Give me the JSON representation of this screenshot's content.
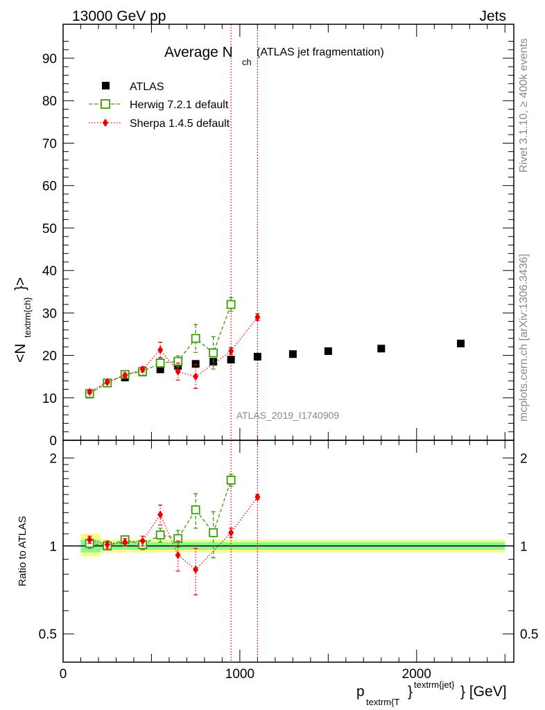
{
  "header": {
    "left": "13000 GeV pp",
    "right": "Jets"
  },
  "title": {
    "main": "Average N",
    "sub": "ch",
    "paren": "(ATLAS jet fragmentation)"
  },
  "side_labels": {
    "rivet": "Rivet 3.1.10, ≥ 400k events",
    "mcplots": "mcplots.cern.ch [arXiv:1306.3436]"
  },
  "watermark": "ATLAS_2019_I1740909",
  "colors": {
    "data": "#000000",
    "herwig": "#3a9a0a",
    "sherpa": "#ee0000",
    "band_inner": "#8cf78c",
    "band_outer": "#fbfb8c"
  },
  "chart_data": [
    {
      "type": "scatter",
      "panel": "main",
      "ylabel_parts": [
        "<N",
        "textrm{ch}",
        "}>"
      ],
      "xlim": [
        0,
        2550
      ],
      "ylim": [
        0,
        98
      ],
      "yticks": [
        0,
        10,
        20,
        30,
        40,
        50,
        60,
        70,
        80,
        90
      ],
      "legend": [
        "ATLAS",
        "Herwig 7.2.1 default",
        "Sherpa 1.4.5 default"
      ],
      "legend_position": "top-left",
      "vertical_lines_x": [
        950,
        1100
      ],
      "series": [
        {
          "name": "ATLAS",
          "x": [
            150,
            250,
            350,
            450,
            550,
            650,
            750,
            850,
            950,
            1100,
            1300,
            1500,
            1800,
            2250
          ],
          "y": [
            10.8,
            13.5,
            14.8,
            16.0,
            16.7,
            17.5,
            18.0,
            18.5,
            19.0,
            19.7,
            20.3,
            21.0,
            21.6,
            22.8
          ]
        },
        {
          "name": "Herwig 7.2.1 default",
          "x": [
            150,
            250,
            350,
            450,
            550,
            650,
            750,
            850,
            950
          ],
          "y": [
            11.0,
            13.5,
            15.5,
            16.2,
            18.2,
            18.6,
            24.0,
            20.6,
            32.0
          ],
          "yerr": [
            0.4,
            0.4,
            0.5,
            0.6,
            1.0,
            1.3,
            3.3,
            3.8,
            1.6
          ]
        },
        {
          "name": "Sherpa 1.4.5 default",
          "x": [
            150,
            250,
            350,
            450,
            550,
            650,
            750,
            950,
            1100
          ],
          "y": [
            11.4,
            13.7,
            15.3,
            16.7,
            21.3,
            16.2,
            15.0,
            21.0,
            29.0
          ],
          "yerr": [
            0.4,
            0.4,
            0.5,
            0.6,
            1.8,
            2.0,
            2.8,
            0.8,
            0.8
          ]
        }
      ]
    },
    {
      "type": "scatter",
      "panel": "ratio",
      "ylabel": "Ratio to ATLAS",
      "yscale": "log",
      "ylim": [
        0.4,
        2.3
      ],
      "yticks": [
        0.5,
        1,
        2
      ],
      "ytick_labels": [
        "0.5",
        "1",
        "2"
      ],
      "xlim": [
        0,
        2550
      ],
      "xticks": [
        0,
        1000,
        2000
      ],
      "xtick_labels": [
        "0",
        "1000",
        "2000"
      ],
      "xlabel_parts": [
        "p",
        "textrm{T",
        "}",
        "textrm{jet}",
        "} [GeV]"
      ],
      "reference": 1,
      "band_x": [
        100,
        2500
      ],
      "band_inner_halfwidth": 0.03,
      "band_outer_halfwidth": 0.05,
      "series": [
        {
          "name": "Herwig 7.2.1 default",
          "x": [
            150,
            250,
            350,
            450,
            550,
            650,
            750,
            850,
            950
          ],
          "y": [
            1.02,
            1.0,
            1.05,
            1.01,
            1.09,
            1.06,
            1.33,
            1.11,
            1.68
          ],
          "yerr": [
            0.04,
            0.03,
            0.03,
            0.04,
            0.06,
            0.07,
            0.18,
            0.2,
            0.08
          ]
        },
        {
          "name": "Sherpa 1.4.5 default",
          "x": [
            150,
            250,
            350,
            450,
            550,
            650,
            750,
            950,
            1100
          ],
          "y": [
            1.05,
            1.01,
            1.03,
            1.04,
            1.28,
            0.93,
            0.83,
            1.11,
            1.47
          ],
          "yerr": [
            0.03,
            0.03,
            0.03,
            0.04,
            0.1,
            0.11,
            0.15,
            0.04,
            0.03
          ]
        }
      ]
    }
  ]
}
